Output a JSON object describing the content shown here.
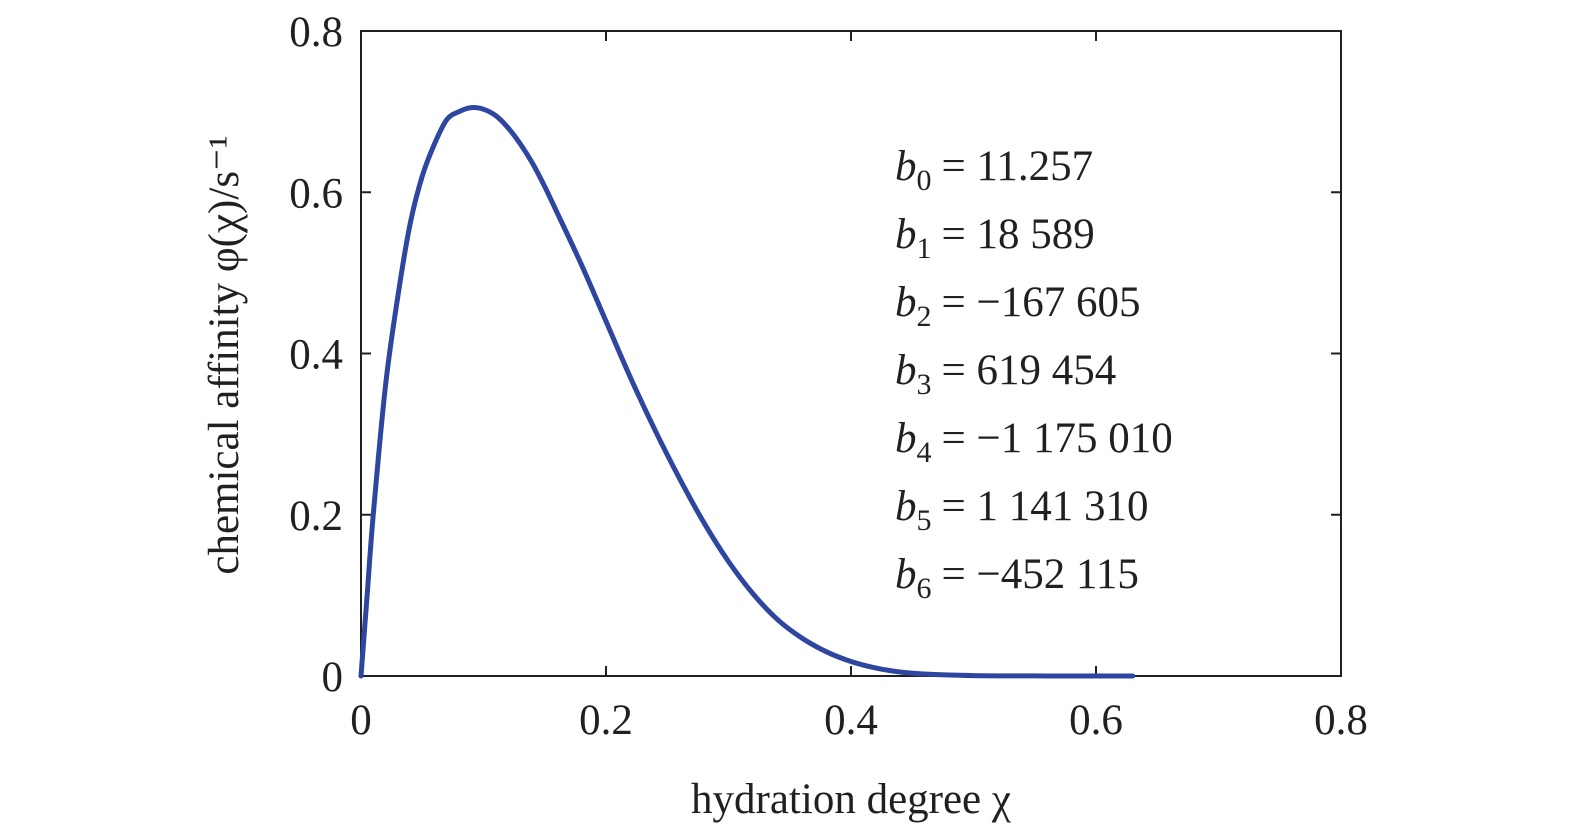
{
  "chart_data": {
    "type": "line",
    "title": "",
    "xlabel": "hydration degree χ",
    "ylabel": "chemical affinity φ(χ)/s⁻¹",
    "xlim": [
      0,
      0.8
    ],
    "ylim": [
      0,
      0.8
    ],
    "x_ticks": [
      "0",
      "0.2",
      "0.4",
      "0.6",
      "0.8"
    ],
    "y_ticks": [
      "0",
      "0.2",
      "0.4",
      "0.6",
      "0.8"
    ],
    "grid": false,
    "series_color": "#2e46a0",
    "series": [
      {
        "x": [
          0,
          0.005,
          0.01,
          0.02,
          0.03,
          0.04,
          0.05,
          0.06,
          0.07,
          0.08,
          0.09,
          0.1,
          0.11,
          0.12,
          0.13,
          0.14,
          0.15,
          0.16,
          0.18,
          0.2,
          0.22,
          0.24,
          0.26,
          0.28,
          0.3,
          0.32,
          0.34,
          0.36,
          0.38,
          0.4,
          0.42,
          0.44,
          0.46,
          0.48,
          0.5,
          0.52,
          0.55,
          0.58,
          0.61,
          0.63
        ],
        "y": [
          0,
          0.1,
          0.2,
          0.36,
          0.47,
          0.56,
          0.62,
          0.66,
          0.69,
          0.7,
          0.705,
          0.703,
          0.695,
          0.68,
          0.66,
          0.636,
          0.607,
          0.575,
          0.51,
          0.44,
          0.37,
          0.305,
          0.245,
          0.19,
          0.142,
          0.102,
          0.07,
          0.047,
          0.03,
          0.018,
          0.01,
          0.005,
          0.0025,
          0.0012,
          0.0005,
          0.0002,
          0.0001,
          0,
          0,
          0
        ]
      }
    ],
    "annotations": [
      {
        "symbol": "b",
        "sub": "0",
        "value": "= 11.257"
      },
      {
        "symbol": "b",
        "sub": "1",
        "value": "= 18 589"
      },
      {
        "symbol": "b",
        "sub": "2",
        "value": "= −167 605"
      },
      {
        "symbol": "b",
        "sub": "3",
        "value": "= 619 454"
      },
      {
        "symbol": "b",
        "sub": "4",
        "value": "= −1 175 010"
      },
      {
        "symbol": "b",
        "sub": "5",
        "value": "= 1 141 310"
      },
      {
        "symbol": "b",
        "sub": "6",
        "value": "= −452 115"
      }
    ]
  }
}
